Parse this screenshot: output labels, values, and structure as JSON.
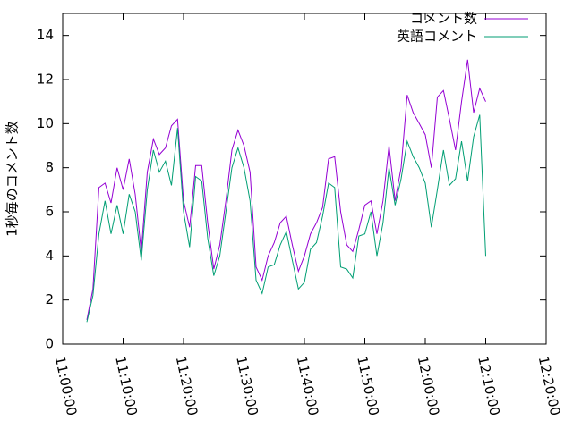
{
  "chart_data": {
    "type": "line",
    "ylabel": "1秒毎のコメント数",
    "x": [
      "11:04:00",
      "11:05:00",
      "11:06:00",
      "11:07:00",
      "11:08:00",
      "11:09:00",
      "11:10:00",
      "11:11:00",
      "11:12:00",
      "11:13:00",
      "11:14:00",
      "11:15:00",
      "11:16:00",
      "11:17:00",
      "11:18:00",
      "11:19:00",
      "11:20:00",
      "11:21:00",
      "11:22:00",
      "11:23:00",
      "11:24:00",
      "11:25:00",
      "11:26:00",
      "11:27:00",
      "11:28:00",
      "11:29:00",
      "11:30:00",
      "11:31:00",
      "11:32:00",
      "11:33:00",
      "11:34:00",
      "11:35:00",
      "11:36:00",
      "11:37:00",
      "11:38:00",
      "11:39:00",
      "11:40:00",
      "11:41:00",
      "11:42:00",
      "11:43:00",
      "11:44:00",
      "11:45:00",
      "11:46:00",
      "11:47:00",
      "11:48:00",
      "11:49:00",
      "11:50:00",
      "11:51:00",
      "11:52:00",
      "11:53:00",
      "11:54:00",
      "11:55:00",
      "11:56:00",
      "11:57:00",
      "11:58:00",
      "11:59:00",
      "12:00:00",
      "12:01:00",
      "12:02:00",
      "12:03:00",
      "12:04:00",
      "12:05:00",
      "12:06:00",
      "12:07:00",
      "12:08:00",
      "12:09:00",
      "12:10:00"
    ],
    "series": [
      {
        "name": "コメント数",
        "color": "#9400d3",
        "values": [
          1.1,
          2.5,
          7.1,
          7.3,
          6.4,
          8.0,
          7.0,
          8.4,
          6.8,
          4.2,
          7.8,
          9.3,
          8.6,
          8.9,
          9.9,
          10.2,
          6.5,
          5.3,
          8.1,
          8.1,
          5.5,
          3.4,
          4.5,
          6.5,
          8.8,
          9.7,
          9.0,
          7.8,
          3.5,
          2.9,
          4.0,
          4.6,
          5.5,
          5.8,
          4.5,
          3.3,
          4.0,
          5.0,
          5.5,
          6.2,
          8.4,
          8.5,
          6.0,
          4.5,
          4.2,
          5.2,
          6.3,
          6.5,
          5.0,
          6.5,
          9.0,
          6.5,
          8.0,
          11.3,
          10.5,
          10.0,
          9.5,
          8.0,
          11.2,
          11.5,
          10.2,
          8.8,
          11.0,
          12.9,
          10.5,
          11.6,
          11.0
        ]
      },
      {
        "name": "英語コメント",
        "color": "#009e73",
        "values": [
          1.0,
          2.2,
          5.0,
          6.5,
          5.0,
          6.3,
          5.0,
          6.8,
          6.0,
          3.8,
          7.0,
          8.8,
          7.8,
          8.3,
          7.2,
          9.8,
          6.0,
          4.4,
          7.6,
          7.4,
          4.8,
          3.1,
          4.0,
          6.0,
          8.0,
          8.9,
          8.0,
          6.5,
          2.9,
          2.3,
          3.5,
          3.6,
          4.5,
          5.1,
          3.8,
          2.5,
          2.8,
          4.3,
          4.6,
          5.8,
          7.3,
          7.1,
          3.5,
          3.4,
          3.0,
          4.9,
          5.0,
          6.0,
          4.0,
          5.5,
          8.0,
          6.3,
          7.5,
          9.2,
          8.5,
          8.0,
          7.3,
          5.3,
          7.0,
          8.8,
          7.2,
          7.5,
          9.2,
          7.4,
          9.4,
          10.4,
          4.0
        ]
      }
    ],
    "xlim": [
      "11:00:00",
      "12:20:00"
    ],
    "xticks": [
      "11:00:00",
      "11:10:00",
      "11:20:00",
      "11:30:00",
      "11:40:00",
      "11:50:00",
      "12:00:00",
      "12:10:00",
      "12:20:00"
    ],
    "ylim": [
      0,
      15
    ],
    "yticks": [
      0,
      2,
      4,
      6,
      8,
      10,
      12,
      14
    ],
    "legend": "top-right"
  }
}
